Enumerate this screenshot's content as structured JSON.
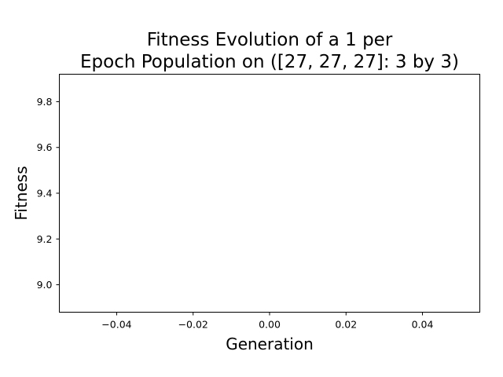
{
  "chart_data": {
    "type": "line",
    "title_line1": "Fitness Evolution of a 1 per",
    "title_line2": "Epoch Population on ([27, 27, 27]: 3 by 3)",
    "xlabel": "Generation",
    "ylabel": "Fitness",
    "xlim": [
      -0.055,
      0.055
    ],
    "ylim": [
      8.88,
      9.92
    ],
    "x_ticks": [
      -0.04,
      -0.02,
      0.0,
      0.02,
      0.04
    ],
    "x_tick_labels": [
      "−0.04",
      "−0.02",
      "0.00",
      "0.02",
      "0.04"
    ],
    "y_ticks": [
      9.0,
      9.2,
      9.4,
      9.6,
      9.8
    ],
    "y_tick_labels": [
      "9.0",
      "9.2",
      "9.4",
      "9.6",
      "9.8"
    ],
    "series": [],
    "grid": false,
    "colors": {
      "axis": "#000000",
      "background": "#ffffff"
    }
  }
}
